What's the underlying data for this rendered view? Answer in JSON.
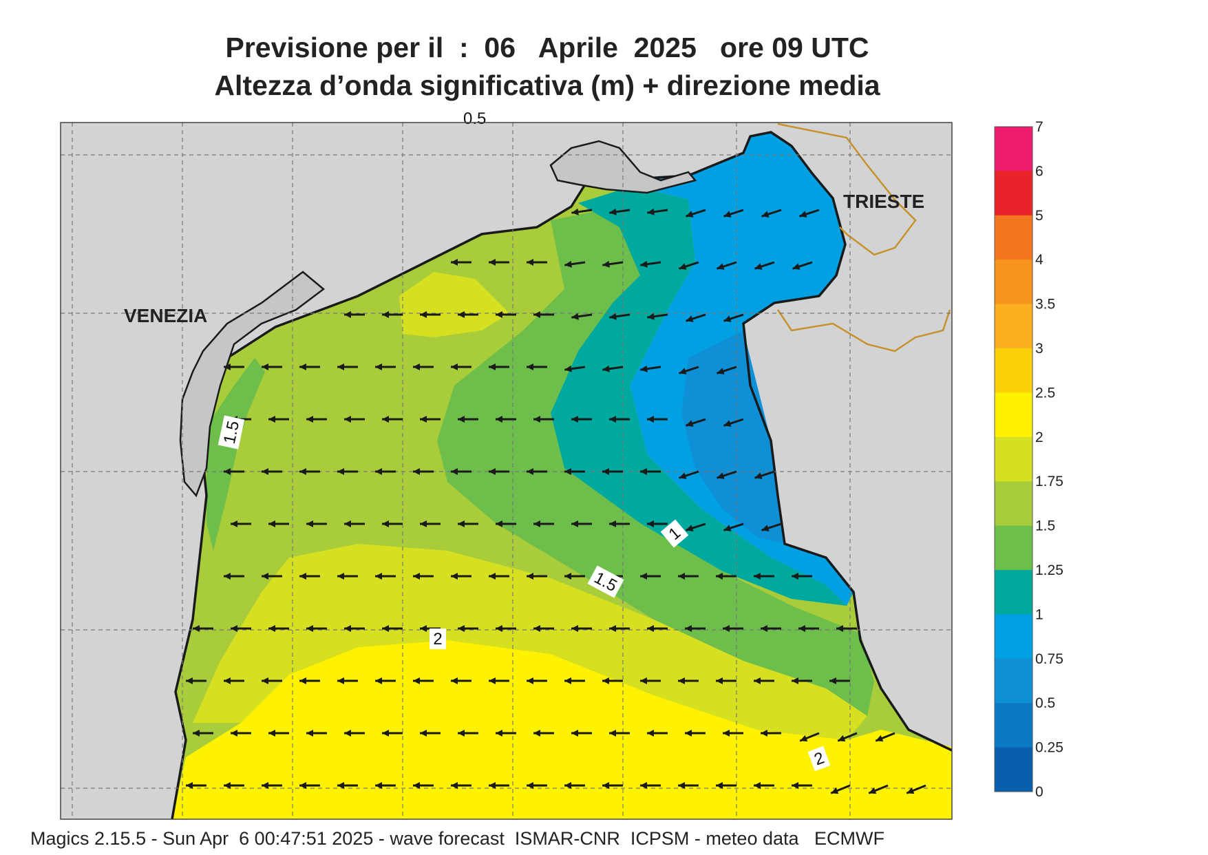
{
  "title": {
    "line1": "Previsione per il  :  06   Aprile  2025   ore 09 UTC",
    "line2": "Altezza d’onda significativa (m) + direzione media"
  },
  "cities": {
    "venezia": "VENEZIA",
    "trieste": "TRIESTE"
  },
  "contour_labels": {
    "a": "1.5",
    "b": "1",
    "c": "1.5",
    "d": "2",
    "e": "2",
    "top": "0.5"
  },
  "colorbar": {
    "levels": [
      "7",
      "6",
      "5",
      "4",
      "3.5",
      "3",
      "2.5",
      "2",
      "1.75",
      "1.5",
      "1.25",
      "1",
      "0.75",
      "0.5",
      "0.25",
      "0"
    ],
    "colors": [
      "#ee1c6b",
      "#e8242a",
      "#f47621",
      "#f7941d",
      "#fbb01d",
      "#fdd10a",
      "#fff200",
      "#d6e021",
      "#a9cd3a",
      "#6dbe4b",
      "#00a99d",
      "#00a0e3",
      "#0e8fd6",
      "#0c79c4",
      "#0a5fac"
    ]
  },
  "colors": {
    "land": "#d1d3d4",
    "sea_yellow": "#fff200",
    "sea_lightyellow": "#d6e021",
    "sea_lightgreen": "#a9cd3a",
    "sea_green": "#6dbe4b",
    "sea_teal": "#00a99d",
    "sea_blue": "#00a0e3",
    "sea_darkblue": "#0c79c4",
    "border": "#c8912a"
  },
  "footer": "Magics 2.15.5 - Sun Apr  6 00:47:51 2025 - wave forecast  ISMAR-CNR  ICPSM - meteo data   ECMWF"
}
